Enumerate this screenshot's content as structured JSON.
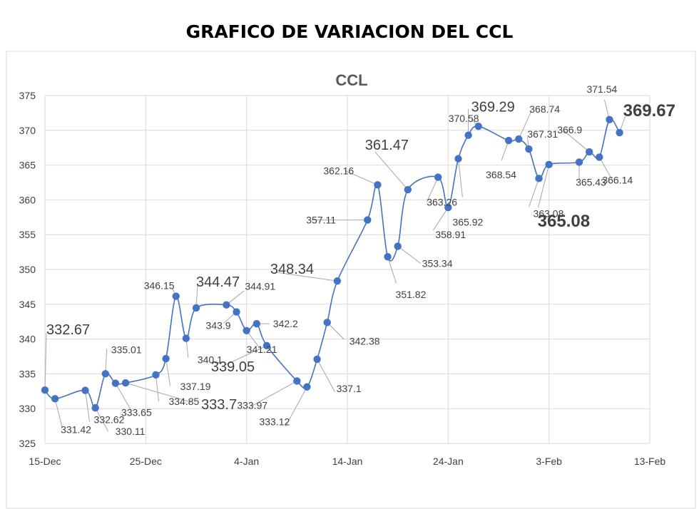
{
  "page_title": "GRAFICO DE VARIACION DEL CCL",
  "chart_data": {
    "type": "line",
    "title": "CCL",
    "xlabel": "",
    "ylabel": "",
    "ylim": [
      325,
      375
    ],
    "yticks": [
      325,
      330,
      335,
      340,
      345,
      350,
      355,
      360,
      365,
      370,
      375
    ],
    "xlim": [
      "2020-12-15",
      "2021-02-13"
    ],
    "xticks": [
      "15-Dec",
      "25-Dec",
      "4-Jan",
      "14-Jan",
      "24-Jan",
      "3-Feb",
      "13-Feb"
    ],
    "grid": true,
    "colors": {
      "line": "#4472C4",
      "marker": "#4472C4",
      "grid": "#d9d9d9",
      "leader": "#a6a6a6"
    },
    "series": [
      {
        "points": [
          {
            "x": "2020-12-15",
            "y": 332.67
          },
          {
            "x": "2020-12-16",
            "y": 331.42
          },
          {
            "x": "2020-12-19",
            "y": 332.62
          },
          {
            "x": "2020-12-20",
            "y": 330.11
          },
          {
            "x": "2020-12-21",
            "y": 335.01
          },
          {
            "x": "2020-12-22",
            "y": 333.65
          },
          {
            "x": "2020-12-23",
            "y": 333.7
          },
          {
            "x": "2020-12-26",
            "y": 334.85
          },
          {
            "x": "2020-12-27",
            "y": 337.19
          },
          {
            "x": "2020-12-28",
            "y": 346.15
          },
          {
            "x": "2020-12-29",
            "y": 340.1
          },
          {
            "x": "2020-12-30",
            "y": 344.47
          },
          {
            "x": "2021-01-02",
            "y": 344.91
          },
          {
            "x": "2021-01-03",
            "y": 343.9
          },
          {
            "x": "2021-01-04",
            "y": 341.21
          },
          {
            "x": "2021-01-05",
            "y": 342.2
          },
          {
            "x": "2021-01-06",
            "y": 339.05
          },
          {
            "x": "2021-01-09",
            "y": 333.97
          },
          {
            "x": "2021-01-10",
            "y": 333.12
          },
          {
            "x": "2021-01-11",
            "y": 337.1
          },
          {
            "x": "2021-01-12",
            "y": 342.38
          },
          {
            "x": "2021-01-13",
            "y": 348.34
          },
          {
            "x": "2021-01-16",
            "y": 357.11
          },
          {
            "x": "2021-01-17",
            "y": 362.16
          },
          {
            "x": "2021-01-18",
            "y": 351.82
          },
          {
            "x": "2021-01-19",
            "y": 353.34
          },
          {
            "x": "2021-01-20",
            "y": 361.47
          },
          {
            "x": "2021-01-23",
            "y": 363.26
          },
          {
            "x": "2021-01-24",
            "y": 358.91
          },
          {
            "x": "2021-01-25",
            "y": 365.92
          },
          {
            "x": "2021-01-26",
            "y": 369.29
          },
          {
            "x": "2021-01-27",
            "y": 370.58
          },
          {
            "x": "2021-01-30",
            "y": 368.54
          },
          {
            "x": "2021-01-31",
            "y": 368.74
          },
          {
            "x": "2021-02-01",
            "y": 367.31
          },
          {
            "x": "2021-02-02",
            "y": 363.08
          },
          {
            "x": "2021-02-03",
            "y": 365.08
          },
          {
            "x": "2021-02-06",
            "y": 365.43
          },
          {
            "x": "2021-02-07",
            "y": 366.9
          },
          {
            "x": "2021-02-08",
            "y": 366.14
          },
          {
            "x": "2021-02-09",
            "y": 371.54
          },
          {
            "x": "2021-02-10",
            "y": 369.67
          }
        ]
      }
    ],
    "data_labels": [
      "332.67",
      "331.42",
      "332.62",
      "330.11",
      "335.01",
      "333.65",
      "333.7",
      "334.85",
      "337.19",
      "346.15",
      "340.1",
      "344.47",
      "344.91",
      "343.9",
      "341.21",
      "342.2",
      "339.05",
      "333.97",
      "333.12",
      "337.1",
      "342.38",
      "348.34",
      "357.11",
      "362.16",
      "351.82",
      "353.34",
      "361.47",
      "363.26",
      "358.91",
      "365.92",
      "369.29",
      "370.58",
      "368.54",
      "368.74",
      "367.31",
      "363.08",
      "365.08",
      "365.43",
      "366.9",
      "366.14",
      "371.54",
      "369.67"
    ]
  }
}
